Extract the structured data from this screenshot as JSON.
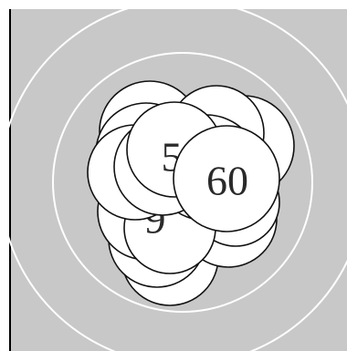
{
  "board": {
    "background_color": "#c8c8c8",
    "ring_color": "#ffffff",
    "left_edge_color": "#000000",
    "bubble_fill": "#ffffff",
    "bubble_stroke": "#111111",
    "label_color": "#2a2a2a"
  },
  "bubbles": {
    "partial_five": {
      "label": "5"
    },
    "partial_nine": {
      "label": "9"
    },
    "front": {
      "label": "60"
    }
  }
}
